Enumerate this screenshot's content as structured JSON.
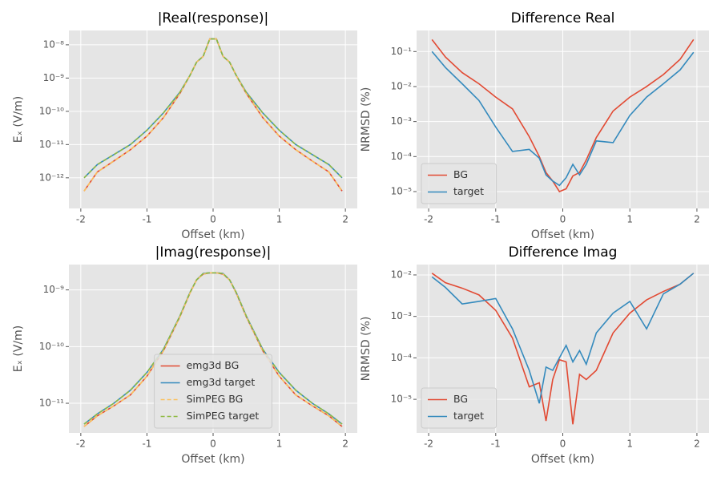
{
  "chart_data": [
    {
      "type": "line",
      "title": "|Real(response)|",
      "xlabel": "Offset (km)",
      "ylabel": "Eₓ (V/m)",
      "x": [
        -1.95,
        -1.75,
        -1.5,
        -1.25,
        -1,
        -0.75,
        -0.5,
        -0.35,
        -0.25,
        -0.15,
        -0.05,
        0.05,
        0.15,
        0.25,
        0.35,
        0.5,
        0.75,
        1,
        1.25,
        1.5,
        1.75,
        1.95
      ],
      "series": [
        {
          "color": "#E24A33",
          "linestyle": "solid",
          "values": [
            4e-13,
            1.5e-12,
            3.2e-12,
            7e-12,
            1.8e-11,
            6.5e-11,
            3.5e-10,
            1.2e-09,
            3e-09,
            4.5e-09,
            1.5e-08,
            1.5e-08,
            4.5e-09,
            3e-09,
            1.2e-09,
            3.5e-10,
            6.5e-11,
            1.8e-11,
            7e-12,
            3.2e-12,
            1.5e-12,
            4e-13
          ]
        },
        {
          "color": "#348ABD",
          "linestyle": "solid",
          "values": [
            1e-12,
            2.5e-12,
            5e-12,
            1e-11,
            2.7e-11,
            9e-11,
            3.8e-10,
            1.2e-09,
            3e-09,
            4.5e-09,
            1.5e-08,
            1.5e-08,
            4.5e-09,
            3e-09,
            1.2e-09,
            3.8e-10,
            9e-11,
            2.7e-11,
            1e-11,
            5e-12,
            2.5e-12,
            1e-12
          ]
        },
        {
          "color": "#FBC15E",
          "linestyle": "dashed",
          "values": [
            4e-13,
            1.5e-12,
            3.2e-12,
            7e-12,
            1.8e-11,
            6.5e-11,
            3.5e-10,
            1.2e-09,
            3e-09,
            4.5e-09,
            1.5e-08,
            1.5e-08,
            4.5e-09,
            3e-09,
            1.2e-09,
            3.5e-10,
            6.5e-11,
            1.8e-11,
            7e-12,
            3.2e-12,
            1.5e-12,
            4e-13
          ]
        },
        {
          "color": "#8EBA42",
          "linestyle": "dashed",
          "values": [
            1e-12,
            2.5e-12,
            5e-12,
            1e-11,
            2.7e-11,
            9e-11,
            3.8e-10,
            1.2e-09,
            3e-09,
            4.5e-09,
            1.5e-08,
            1.5e-08,
            4.5e-09,
            3e-09,
            1.2e-09,
            3.8e-10,
            9e-11,
            2.7e-11,
            1e-11,
            5e-12,
            2.5e-12,
            1e-12
          ]
        }
      ],
      "xlim": [
        -2.18,
        2.18
      ],
      "xticks": [
        -2,
        -1,
        0,
        1,
        2
      ],
      "ylim": [
        1.2e-13,
        2.7e-08
      ],
      "log_y": true,
      "grid": true,
      "yticks": [
        {
          "value": 1e-12,
          "label": "10⁻¹²"
        },
        {
          "value": 1e-11,
          "label": "10⁻¹¹"
        },
        {
          "value": 1e-10,
          "label": "10⁻¹⁰"
        },
        {
          "value": 1e-09,
          "label": "10⁻⁹"
        },
        {
          "value": 1e-08,
          "label": "10⁻⁸"
        }
      ]
    },
    {
      "type": "line",
      "title": "Difference Real",
      "xlabel": "Offset (km)",
      "ylabel": "NRMSD (%)",
      "x": [
        -1.95,
        -1.75,
        -1.5,
        -1.25,
        -1,
        -0.75,
        -0.5,
        -0.35,
        -0.25,
        -0.15,
        -0.05,
        0.05,
        0.15,
        0.25,
        0.35,
        0.5,
        0.75,
        1,
        1.25,
        1.5,
        1.75,
        1.95
      ],
      "series": [
        {
          "name": "BG",
          "color": "#E24A33",
          "values": [
            0.22,
            0.07,
            0.025,
            0.012,
            0.005,
            0.0023,
            0.00037,
            0.0001,
            3.5e-05,
            2e-05,
            1e-05,
            1.2e-05,
            2.8e-05,
            3.5e-05,
            8e-05,
            0.00035,
            0.002,
            0.005,
            0.01,
            0.022,
            0.06,
            0.22
          ]
        },
        {
          "name": "target",
          "color": "#348ABD",
          "values": [
            0.1,
            0.035,
            0.012,
            0.004,
            0.0007,
            0.00014,
            0.00016,
            9e-05,
            3e-05,
            2e-05,
            1.5e-05,
            2.5e-05,
            6e-05,
            3e-05,
            6e-05,
            0.00028,
            0.00025,
            0.0015,
            0.005,
            0.012,
            0.03,
            0.095
          ]
        }
      ],
      "xlim": [
        -2.18,
        2.18
      ],
      "xticks": [
        -2,
        -1,
        0,
        1,
        2
      ],
      "ylim": [
        3.3e-06,
        0.4
      ],
      "log_y": true,
      "grid": true,
      "legend": "lower left",
      "yticks": [
        {
          "value": 1e-05,
          "label": "10⁻⁵"
        },
        {
          "value": 0.0001,
          "label": "10⁻⁴"
        },
        {
          "value": 0.001,
          "label": "10⁻³"
        },
        {
          "value": 0.01,
          "label": "10⁻²"
        },
        {
          "value": 0.1,
          "label": "10⁻¹"
        }
      ]
    },
    {
      "type": "line",
      "title": "|Imag(response)|",
      "xlabel": "Offset (km)",
      "ylabel": "Eₓ (V/m)",
      "x": [
        -1.95,
        -1.75,
        -1.5,
        -1.25,
        -1,
        -0.75,
        -0.5,
        -0.35,
        -0.25,
        -0.15,
        -0.05,
        0.05,
        0.15,
        0.25,
        0.35,
        0.5,
        0.75,
        1,
        1.25,
        1.5,
        1.75,
        1.95
      ],
      "series": [
        {
          "name": "emg3d BG",
          "color": "#E24A33",
          "linestyle": "solid",
          "values": [
            3.9e-12,
            6e-12,
            9e-12,
            1.4e-11,
            3e-11,
            8.5e-11,
            3.4e-10,
            8.8e-10,
            1.5e-09,
            1.9e-09,
            2e-09,
            2e-09,
            1.9e-09,
            1.5e-09,
            8.8e-10,
            3.4e-10,
            8.5e-11,
            3e-11,
            1.4e-11,
            9e-12,
            6e-12,
            3.9e-12
          ]
        },
        {
          "name": "emg3d target",
          "color": "#348ABD",
          "linestyle": "solid",
          "values": [
            4.3e-12,
            6.5e-12,
            1e-11,
            1.7e-11,
            3.5e-11,
            9e-11,
            3.5e-10,
            9e-10,
            1.5e-09,
            1.95e-09,
            2e-09,
            2e-09,
            1.95e-09,
            1.5e-09,
            9e-10,
            3.5e-10,
            9e-11,
            3.5e-11,
            1.7e-11,
            1e-11,
            6.5e-12,
            4.3e-12
          ]
        },
        {
          "name": "SimPEG BG",
          "color": "#FBC15E",
          "linestyle": "dashed",
          "values": [
            3.9e-12,
            6e-12,
            9e-12,
            1.4e-11,
            3e-11,
            8.5e-11,
            3.4e-10,
            8.8e-10,
            1.5e-09,
            1.9e-09,
            2e-09,
            2e-09,
            1.9e-09,
            1.5e-09,
            8.8e-10,
            3.4e-10,
            8.5e-11,
            3e-11,
            1.4e-11,
            9e-12,
            6e-12,
            3.9e-12
          ]
        },
        {
          "name": "SimPEG target",
          "color": "#8EBA42",
          "linestyle": "dashed",
          "values": [
            4.3e-12,
            6.5e-12,
            1e-11,
            1.7e-11,
            3.5e-11,
            9e-11,
            3.5e-10,
            9e-10,
            1.5e-09,
            1.95e-09,
            2e-09,
            2e-09,
            1.95e-09,
            1.5e-09,
            9e-10,
            3.5e-10,
            9e-11,
            3.5e-11,
            1.7e-11,
            1e-11,
            6.5e-12,
            4.3e-12
          ]
        }
      ],
      "xlim": [
        -2.18,
        2.18
      ],
      "xticks": [
        -2,
        -1,
        0,
        1,
        2
      ],
      "ylim": [
        3e-12,
        2.8e-09
      ],
      "log_y": true,
      "grid": true,
      "legend": "lower center",
      "yticks": [
        {
          "value": 1e-11,
          "label": "10⁻¹¹"
        },
        {
          "value": 1e-10,
          "label": "10⁻¹⁰"
        },
        {
          "value": 1e-09,
          "label": "10⁻⁹"
        }
      ]
    },
    {
      "type": "line",
      "title": "Difference Imag",
      "xlabel": "Offset (km)",
      "ylabel": "NRMSD (%)",
      "x": [
        -1.95,
        -1.75,
        -1.5,
        -1.25,
        -1,
        -0.75,
        -0.5,
        -0.35,
        -0.25,
        -0.15,
        -0.05,
        0.05,
        0.15,
        0.25,
        0.35,
        0.5,
        0.75,
        1,
        1.25,
        1.5,
        1.75,
        1.95
      ],
      "series": [
        {
          "name": "BG",
          "color": "#E24A33",
          "values": [
            0.011,
            0.0065,
            0.0048,
            0.0033,
            0.0014,
            0.0003,
            2e-05,
            2.5e-05,
            3e-06,
            3e-05,
            9e-05,
            8e-05,
            2.5e-06,
            4e-05,
            3e-05,
            5e-05,
            0.0004,
            0.0012,
            0.0025,
            0.004,
            0.006,
            0.011
          ]
        },
        {
          "name": "target",
          "color": "#348ABD",
          "values": [
            0.009,
            0.005,
            0.002,
            0.0023,
            0.0027,
            0.0005,
            5e-05,
            8e-06,
            6e-05,
            5e-05,
            0.0001,
            0.0002,
            8e-05,
            0.00015,
            7e-05,
            0.0004,
            0.0012,
            0.0023,
            0.0005,
            0.0035,
            0.006,
            0.011
          ]
        }
      ],
      "xlim": [
        -2.18,
        2.18
      ],
      "xticks": [
        -2,
        -1,
        0,
        1,
        2
      ],
      "ylim": [
        1.55e-06,
        0.0178
      ],
      "log_y": true,
      "grid": true,
      "legend": "lower left",
      "yticks": [
        {
          "value": 1e-05,
          "label": "10⁻⁵"
        },
        {
          "value": 0.0001,
          "label": "10⁻⁴"
        },
        {
          "value": 0.001,
          "label": "10⁻³"
        },
        {
          "value": 0.01,
          "label": "10⁻²"
        }
      ]
    }
  ]
}
